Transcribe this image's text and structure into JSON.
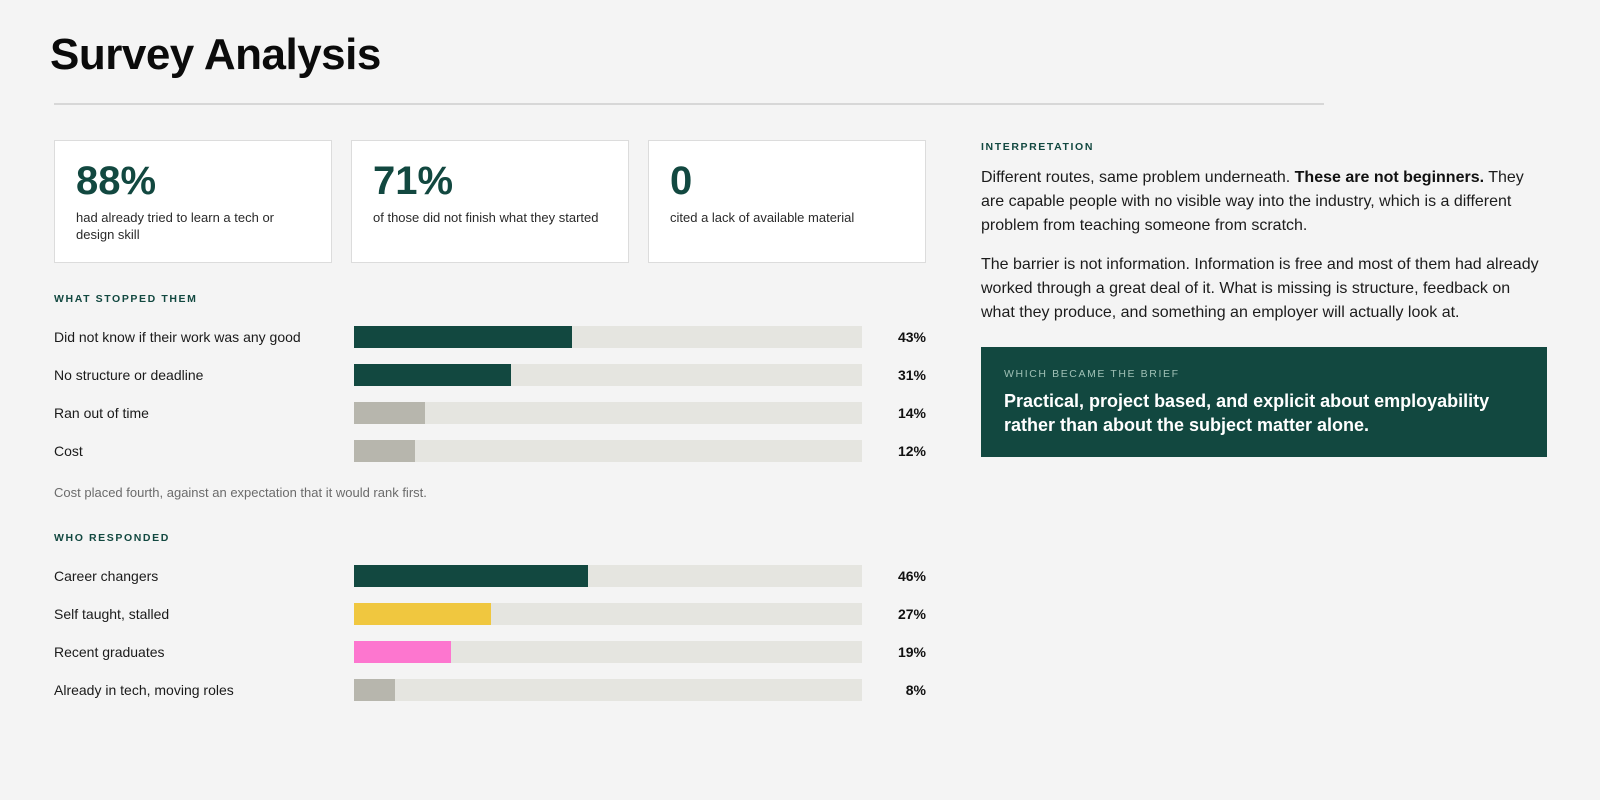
{
  "header": {
    "title": "Survey Analysis"
  },
  "stats": [
    {
      "value": "88%",
      "description": "had already tried to learn a tech or design skill"
    },
    {
      "value": "71%",
      "description": "of those did not finish what they started"
    },
    {
      "value": "0",
      "description": "cited a lack of available material"
    }
  ],
  "colors": {
    "accent_green": "#124840",
    "muted_grey": "#b7b6ad",
    "yellow": "#f0c73f",
    "pink": "#fd76cf",
    "track": "#e5e5e0",
    "background": "#f4f4f4"
  },
  "chart_data": [
    {
      "type": "bar",
      "orientation": "horizontal",
      "title": "WHAT STOPPED THEM",
      "categories": [
        "Did not know if their work was any good",
        "No structure or deadline",
        "Ran out of time",
        "Cost"
      ],
      "values": [
        43,
        31,
        14,
        12
      ],
      "value_labels": [
        "43%",
        "31%",
        "14%",
        "12%"
      ],
      "bar_colors": [
        "#124840",
        "#124840",
        "#b7b6ad",
        "#b7b6ad"
      ],
      "xlim": [
        0,
        100
      ],
      "grid": false,
      "note": "Cost placed fourth, against an expectation that it would rank first."
    },
    {
      "type": "bar",
      "orientation": "horizontal",
      "title": "WHO RESPONDED",
      "categories": [
        "Career changers",
        "Self taught, stalled",
        "Recent graduates",
        "Already in tech, moving roles"
      ],
      "values": [
        46,
        27,
        19,
        8
      ],
      "value_labels": [
        "46%",
        "27%",
        "19%",
        "8%"
      ],
      "bar_colors": [
        "#124840",
        "#f0c73f",
        "#fd76cf",
        "#b7b6ad"
      ],
      "xlim": [
        0,
        100
      ],
      "grid": false
    }
  ],
  "interpretation": {
    "label": "INTERPRETATION",
    "para1_start": "Different routes, same problem underneath. ",
    "para1_bold": "These are not beginners.",
    "para1_end": " They are capable people with no visible way into the industry, which is a different problem from teaching someone from scratch.",
    "para2": "The barrier is not information. Information is free and most of them had already worked through a great deal of it. What is missing is structure, feedback on what they produce, and something an employer will actually look at."
  },
  "brief": {
    "label": "WHICH BECAME THE BRIEF",
    "text": "Practical, project based, and explicit about employability rather than about the subject matter alone."
  }
}
